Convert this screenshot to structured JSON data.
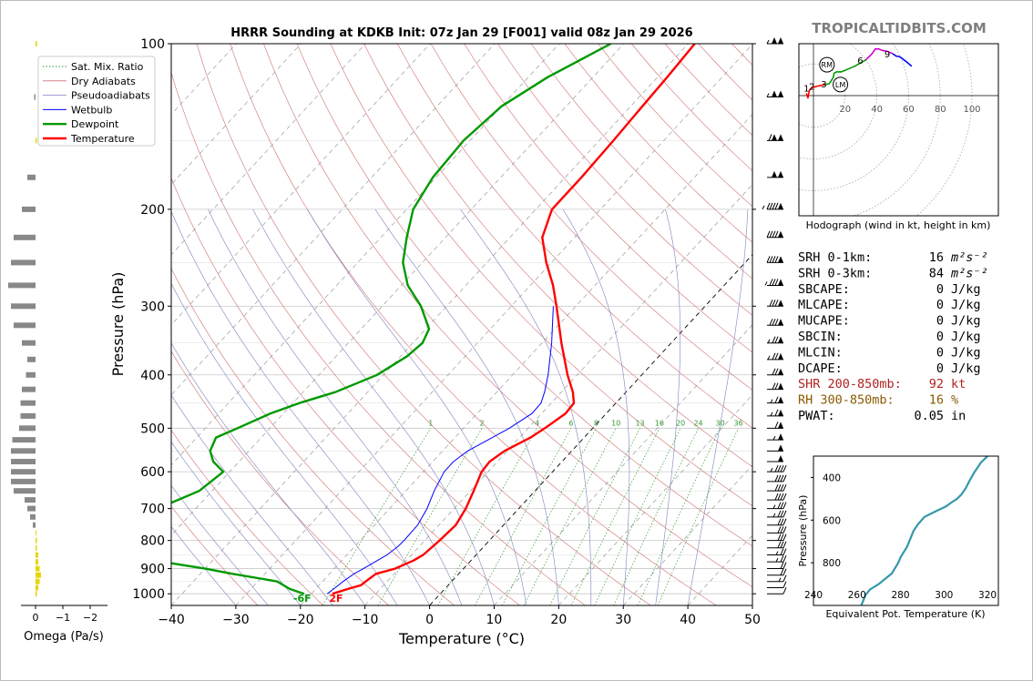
{
  "brand": "TROPICALTIDBITS.COM",
  "colors": {
    "temperature": "#ff0000",
    "dewpoint": "#009900",
    "wetbulb": "#0000ff",
    "dry_adiabat": "#d07070",
    "pseudoadiabat": "#8080c0",
    "mixing_ratio": "#339933",
    "isotherm_dash": "#999999",
    "freezing_isotherm": "#000000",
    "brand_gray": "#7f7f7f",
    "omega_bar": "#888888",
    "omega_positive": "#e6d600",
    "theta_e_line": "#3399aa",
    "shr_text": "#b22222",
    "rh_text": "#8b5a00",
    "hodo_red": "#ff0000",
    "hodo_green": "#009900",
    "hodo_magenta": "#cc00cc",
    "hodo_blue": "#0000ff"
  },
  "chart_data": [
    {
      "type": "line",
      "name": "skew-t",
      "title": "HRRR Sounding at KDKB Init: 07z Jan 29 [F001] valid 08z Jan 29 2026",
      "xlabel": "Temperature (°C)",
      "ylabel": "Pressure (hPa)",
      "xlim": [
        -40,
        50
      ],
      "ylim": [
        1050,
        100
      ],
      "yscale": "log",
      "x_ticks": [
        "−40",
        "−30",
        "−20",
        "−10",
        "0",
        "10",
        "20",
        "30",
        "40",
        "50"
      ],
      "x_tick_values": [
        -40,
        -30,
        -20,
        -10,
        0,
        10,
        20,
        30,
        40,
        50
      ],
      "y_ticks": [
        "100",
        "200",
        "300",
        "400",
        "500",
        "600",
        "700",
        "800",
        "900",
        "1000"
      ],
      "y_tick_values": [
        100,
        200,
        300,
        400,
        500,
        600,
        700,
        800,
        900,
        1000
      ],
      "legend": [
        "Sat. Mix. Ratio",
        "Dry Adiabats",
        "Pseudoadiabats",
        "Wetbulb",
        "Dewpoint",
        "Temperature"
      ],
      "legend_position": "top-left",
      "mixing_ratio_labels": [
        "1",
        "2",
        "4",
        "6",
        "8",
        "10",
        "13",
        "16",
        "20",
        "24",
        "30",
        "36"
      ],
      "mixing_ratio_values": [
        1,
        2,
        4,
        6,
        8,
        10,
        13,
        16,
        20,
        24,
        30,
        36
      ],
      "surface_temp_label": "2F",
      "surface_dewpoint_label": "-6F",
      "temperature": {
        "p": [
          1000,
          980,
          965,
          950,
          920,
          900,
          870,
          850,
          820,
          800,
          750,
          700,
          650,
          600,
          575,
          550,
          520,
          500,
          470,
          450,
          430,
          400,
          350,
          300,
          275,
          250,
          225,
          200,
          175,
          150,
          130,
          115,
          100
        ],
        "t": [
          -16.7,
          -15,
          -13.5,
          -13.3,
          -12.8,
          -10.6,
          -8.9,
          -8.2,
          -7.9,
          -7.7,
          -7.4,
          -8.2,
          -9.5,
          -11,
          -11.2,
          -10.4,
          -8.3,
          -7.4,
          -6.3,
          -6.5,
          -8.2,
          -11.5,
          -17,
          -23,
          -26.5,
          -30.8,
          -35,
          -37.5,
          -37.5,
          -37.8,
          -38.2,
          -38.5,
          -39
        ]
      },
      "dewpoint": {
        "p": [
          1000,
          980,
          950,
          940,
          920,
          900,
          870,
          850,
          820,
          800,
          775,
          750,
          700,
          675,
          650,
          600,
          575,
          550,
          520,
          500,
          470,
          450,
          430,
          400,
          370,
          350,
          330,
          300,
          275,
          250,
          225,
          200,
          175,
          150,
          130,
          115,
          100
        ],
        "t": [
          -21.1,
          -24,
          -27,
          -29.5,
          -35,
          -40,
          -49,
          -57,
          -63,
          -64,
          -61,
          -58,
          -56,
          -54,
          -52,
          -51,
          -54,
          -56,
          -57,
          -55,
          -52,
          -49,
          -45,
          -41,
          -39,
          -38.5,
          -39.5,
          -44,
          -49,
          -53,
          -56,
          -59,
          -60.5,
          -61,
          -60,
          -57,
          -52
        ]
      },
      "wetbulb": {
        "p": [
          1000,
          980,
          950,
          920,
          900,
          870,
          850,
          820,
          800,
          750,
          700,
          650,
          600,
          575,
          550,
          520,
          500,
          470,
          450,
          430,
          400,
          350,
          300
        ],
        "t": [
          -17.5,
          -17.2,
          -16.8,
          -16.2,
          -15.5,
          -14.5,
          -13.8,
          -13.3,
          -13.2,
          -13.3,
          -14.2,
          -15.6,
          -16.8,
          -16.8,
          -16.1,
          -14.2,
          -12.9,
          -11.5,
          -11.6,
          -12.6,
          -14.5,
          -18.5,
          -23.5
        ]
      }
    },
    {
      "type": "line",
      "name": "hodograph",
      "xlabel": "Hodograph (wind in kt, height in km)",
      "ring_labels": [
        "20",
        "40",
        "60",
        "80",
        "100"
      ],
      "ring_values": [
        20,
        40,
        60,
        80,
        100
      ],
      "height_labels": [
        "1",
        "2",
        "3",
        "6",
        "9"
      ],
      "markers": [
        "LM",
        "RM"
      ],
      "u_v_kt": [
        [
          -9,
          -3
        ],
        [
          -7,
          3
        ],
        [
          -5,
          -7
        ],
        [
          -2,
          -10
        ],
        [
          5,
          -12
        ],
        [
          15,
          -14
        ],
        [
          20,
          -15
        ],
        [
          22,
          -18
        ],
        [
          25,
          -23
        ],
        [
          26,
          -28
        ],
        [
          29,
          -30
        ],
        [
          35,
          -30
        ],
        [
          40,
          -32
        ],
        [
          52,
          -37
        ],
        [
          66,
          -45
        ],
        [
          74,
          -53
        ],
        [
          78,
          -59
        ],
        [
          82,
          -59
        ],
        [
          87,
          -57
        ],
        [
          93,
          -56
        ],
        [
          100,
          -53
        ],
        [
          104,
          -50
        ],
        [
          109,
          -49
        ],
        [
          117,
          -43
        ],
        [
          124,
          -37
        ]
      ],
      "lm_uv": [
        34,
        -14
      ],
      "rm_uv": [
        17,
        -39
      ]
    },
    {
      "type": "line",
      "name": "theta-e-profile",
      "xlabel": "Equivalent Pot. Temperature (K)",
      "ylabel": "Pressure (hPa)",
      "xlim": [
        240,
        325
      ],
      "ylim": [
        1000,
        300
      ],
      "x_ticks": [
        "240",
        "260",
        "280",
        "300",
        "320"
      ],
      "x_tick_values": [
        240,
        260,
        280,
        300,
        320
      ],
      "y_ticks": [
        "400",
        "600",
        "800"
      ],
      "y_tick_values": [
        400,
        600,
        800
      ],
      "theta_e": [
        262,
        263,
        264,
        266,
        270,
        273,
        276,
        279,
        280,
        283,
        285,
        286,
        288,
        291,
        296,
        301,
        303,
        306,
        308,
        310,
        312,
        314,
        317,
        320
      ],
      "pressure": [
        1000,
        975,
        950,
        925,
        900,
        875,
        850,
        800,
        775,
        725,
        675,
        650,
        620,
        585,
        560,
        535,
        520,
        500,
        480,
        450,
        410,
        375,
        330,
        300
      ]
    },
    {
      "type": "bar",
      "name": "omega",
      "xlabel": "Omega (Pa/s)",
      "x_ticks": [
        "0",
        "−1",
        "−2"
      ],
      "x_tick_values": [
        0,
        -1,
        -2
      ],
      "pressure": [
        1000,
        975,
        950,
        925,
        900,
        875,
        850,
        825,
        800,
        775,
        750,
        725,
        700,
        675,
        650,
        625,
        600,
        575,
        550,
        525,
        500,
        475,
        450,
        425,
        400,
        375,
        350,
        325,
        300,
        275,
        250,
        225,
        200,
        175,
        150,
        125,
        100
      ],
      "values": [
        0.05,
        0.1,
        0.15,
        0.2,
        0.15,
        0.1,
        0.1,
        0.05,
        0.05,
        0.03,
        -0.1,
        -0.2,
        -0.3,
        -0.4,
        -0.8,
        -0.9,
        -0.9,
        -0.9,
        -0.9,
        -0.85,
        -0.6,
        -0.55,
        -0.55,
        -0.5,
        -0.35,
        -0.3,
        -0.5,
        -0.8,
        -0.9,
        -1.0,
        -0.9,
        -0.8,
        -0.5,
        -0.3,
        0.05,
        -0.05,
        0.05
      ]
    }
  ],
  "winds": {
    "pressure": [
      1000,
      975,
      950,
      925,
      900,
      875,
      850,
      825,
      800,
      775,
      750,
      725,
      700,
      675,
      650,
      625,
      600,
      575,
      550,
      525,
      500,
      475,
      450,
      425,
      400,
      375,
      350,
      325,
      300,
      275,
      250,
      225,
      200,
      175,
      150,
      125,
      100
    ],
    "speed_kt": [
      10,
      10,
      15,
      20,
      20,
      25,
      25,
      30,
      30,
      30,
      30,
      35,
      35,
      40,
      40,
      40,
      45,
      50,
      50,
      55,
      60,
      65,
      65,
      70,
      70,
      75,
      75,
      80,
      80,
      85,
      90,
      90,
      95,
      100,
      110,
      105,
      105
    ]
  },
  "indices": [
    {
      "label": "SRH 0-1km:",
      "value": "16",
      "unit": "m²s⁻²",
      "color": "#000000"
    },
    {
      "label": "SRH 0-3km:",
      "value": "84",
      "unit": "m²s⁻²",
      "color": "#000000"
    },
    {
      "label": "SBCAPE:",
      "value": "0",
      "unit": "J/kg",
      "color": "#000000"
    },
    {
      "label": "MLCAPE:",
      "value": "0",
      "unit": "J/kg",
      "color": "#000000"
    },
    {
      "label": "MUCAPE:",
      "value": "0",
      "unit": "J/kg",
      "color": "#000000"
    },
    {
      "label": "SBCIN:",
      "value": "0",
      "unit": "J/kg",
      "color": "#000000"
    },
    {
      "label": "MLCIN:",
      "value": "0",
      "unit": "J/kg",
      "color": "#000000"
    },
    {
      "label": "DCAPE:",
      "value": "0",
      "unit": "J/kg",
      "color": "#000000"
    },
    {
      "label": "SHR 200-850mb:",
      "value": "92",
      "unit": "kt",
      "color": "#b22222"
    },
    {
      "label": "RH 300-850mb:",
      "value": "16",
      "unit": "%",
      "color": "#8b5a00"
    },
    {
      "label": "PWAT:",
      "value": "0.05",
      "unit": "in",
      "color": "#000000"
    }
  ]
}
